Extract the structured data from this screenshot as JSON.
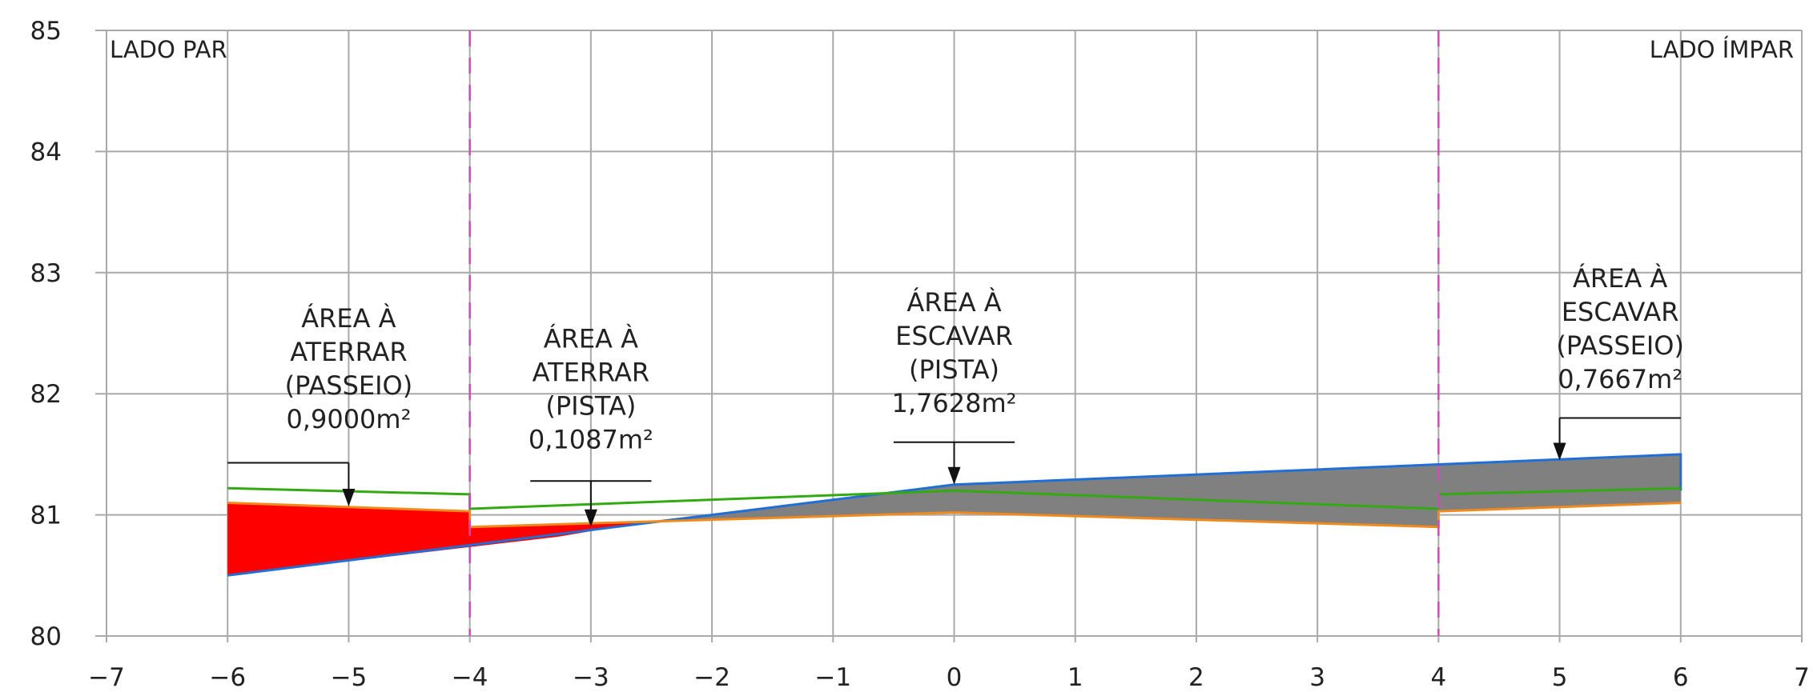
{
  "chart_data": {
    "type": "area",
    "xlim": [
      -7,
      7
    ],
    "ylim": [
      80,
      85
    ],
    "x_ticks": [
      "−7",
      "−6",
      "−5",
      "−4",
      "−3",
      "−2",
      "−1",
      "0",
      "1",
      "2",
      "3",
      "4",
      "5",
      "6",
      "7"
    ],
    "y_ticks": [
      "80",
      "81",
      "82",
      "83",
      "84",
      "85"
    ],
    "grid": true,
    "section_lines_x": [
      -4,
      4
    ],
    "left_label": "LADO PAR",
    "right_label": "LADO ÍMPAR",
    "series": [
      {
        "color": "#1f6fd6",
        "points": [
          [
            -6,
            80.5
          ],
          [
            0,
            81.25
          ],
          [
            6,
            81.5
          ],
          [
            6,
            81.2
          ]
        ]
      },
      {
        "color": "#33aa11",
        "points": [
          [
            -6,
            81.22
          ],
          [
            -4,
            81.17
          ],
          [
            -4,
            81.05
          ],
          [
            0,
            81.2
          ],
          [
            4,
            81.05
          ],
          [
            4,
            81.17
          ],
          [
            6,
            81.22
          ]
        ]
      },
      {
        "color": "#f08a1c",
        "points": [
          [
            -6,
            81.1
          ],
          [
            -4,
            81.03
          ],
          [
            -4,
            80.9
          ],
          [
            0,
            81.02
          ],
          [
            4,
            80.9
          ],
          [
            4,
            81.03
          ],
          [
            6,
            81.1
          ]
        ]
      }
    ],
    "fill_areas": [
      {
        "color": "#ff0000",
        "points": [
          [
            -6,
            80.5
          ],
          [
            -6,
            81.1
          ],
          [
            -4,
            81.03
          ],
          [
            -4,
            80.9
          ],
          [
            -2.5,
            80.95
          ],
          [
            -3.27,
            80.82
          ]
        ]
      },
      {
        "color": "#808080",
        "points": [
          [
            -2.5,
            80.95
          ],
          [
            0,
            81.02
          ],
          [
            4,
            80.9
          ],
          [
            4,
            81.03
          ],
          [
            6,
            81.1
          ],
          [
            6,
            81.5
          ],
          [
            0,
            81.25
          ]
        ]
      }
    ],
    "annotations": [
      {
        "lines": [
          "ÁREA À",
          "ATERRAR",
          "(PASSEIO)",
          "0,9000m²"
        ],
        "cx": -5.0,
        "top": 82.55,
        "leader_x": [
          -6,
          -5
        ],
        "leader_y": 81.43,
        "arrow_x": -5,
        "arrow_to_y": 81.07
      },
      {
        "lines": [
          "ÁREA À",
          "ATERRAR",
          "(PISTA)",
          "0,1087m²"
        ],
        "cx": -3.0,
        "top": 82.38,
        "leader_x": [
          -3.5,
          -2.5
        ],
        "leader_y": 81.28,
        "arrow_x": -3,
        "arrow_to_y": 80.9
      },
      {
        "lines": [
          "ÁREA À",
          "ESCAVAR",
          "(PISTA)",
          "1,7628m²"
        ],
        "cx": 0.0,
        "top": 82.68,
        "leader_x": [
          -0.5,
          0.5
        ],
        "leader_y": 81.6,
        "arrow_x": 0,
        "arrow_to_y": 81.25
      },
      {
        "lines": [
          "ÁREA À",
          "ESCAVAR",
          "(PASSEIO)",
          "0,7667m²"
        ],
        "cx": 5.5,
        "top": 82.88,
        "leader_x": [
          5,
          6
        ],
        "leader_y": 81.8,
        "arrow_x": 5,
        "arrow_to_y": 81.45
      }
    ]
  }
}
